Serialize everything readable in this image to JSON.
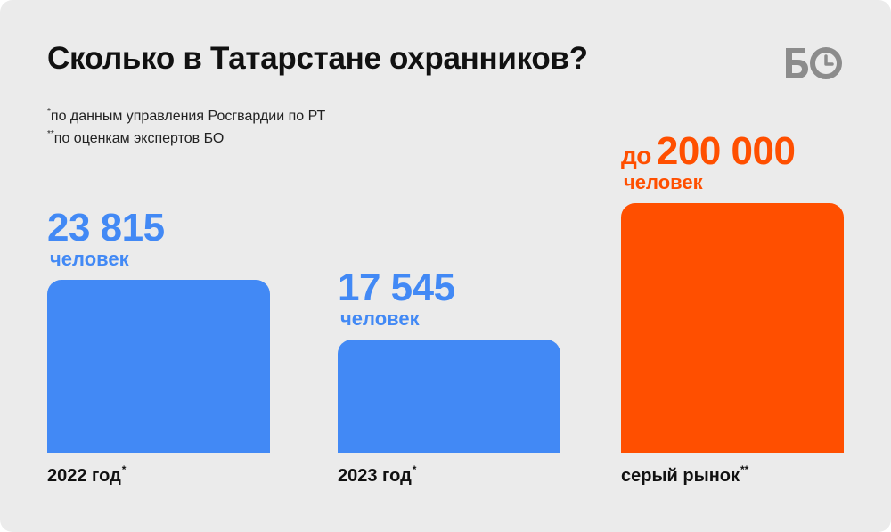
{
  "title": "Сколько в Татарстане охранников?",
  "logo": {
    "text": "БО",
    "icon": "bo-clock-logo-icon"
  },
  "footnotes": [
    {
      "mark": "*",
      "text": "по данным управления Росгвардии по РТ"
    },
    {
      "mark": "**",
      "text": "по оценкам экспертов БО"
    }
  ],
  "colors": {
    "blue": "#4289f5",
    "orange": "#ff4f00",
    "card": "#ebebeb",
    "text": "#111111"
  },
  "chart_data": {
    "type": "bar",
    "title": "Сколько в Татарстане охранников?",
    "ylim": [
      0,
      200000
    ],
    "scale_note": "bars are illustrative, not to linear scale",
    "categories": [
      "2022 год",
      "2023 год",
      "серый рынок"
    ],
    "category_marks": [
      "*",
      "*",
      "**"
    ],
    "values": [
      23815,
      17545,
      200000
    ],
    "display_values": [
      "23 815",
      "17 545",
      "200 000"
    ],
    "value_prefix": [
      "",
      "",
      "до"
    ],
    "unit": "человек",
    "bar_colors": [
      "#4289f5",
      "#4289f5",
      "#ff4f00"
    ],
    "xlabel": "",
    "ylabel": ""
  }
}
